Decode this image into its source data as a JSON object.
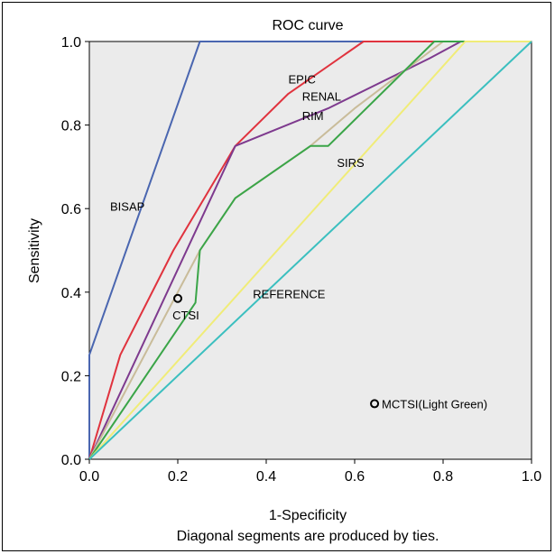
{
  "chart_data": {
    "type": "line",
    "title": "ROC curve",
    "xlabel": "1-Specificity",
    "ylabel": "Sensitivity",
    "footnote": "Diagonal segments are produced by ties.",
    "xlim": [
      0,
      1
    ],
    "ylim": [
      0,
      1
    ],
    "x_ticks": [
      "0.0",
      "0.2",
      "0.4",
      "0.6",
      "0.8",
      "1.0"
    ],
    "y_ticks": [
      "0.0",
      "0.2",
      "0.4",
      "0.6",
      "0.8",
      "1.0"
    ],
    "grid": false,
    "plot_background": "#ebebeb",
    "series": [
      {
        "name": "BISAP",
        "color": "#4a66b0",
        "points": [
          [
            0,
            0
          ],
          [
            0,
            0.25
          ],
          [
            0.25,
            1
          ],
          [
            1,
            1
          ]
        ]
      },
      {
        "name": "EPIC",
        "color": "#e0333e",
        "points": [
          [
            0,
            0
          ],
          [
            0.07,
            0.25
          ],
          [
            0.19,
            0.5
          ],
          [
            0.33,
            0.75
          ],
          [
            0.45,
            0.875
          ],
          [
            0.62,
            1
          ],
          [
            1,
            1
          ]
        ]
      },
      {
        "name": "RENAL",
        "color": "#7e3a8e",
        "points": [
          [
            0,
            0
          ],
          [
            0.33,
            0.75
          ],
          [
            0.54,
            0.84
          ],
          [
            0.77,
            0.96
          ],
          [
            0.84,
            1
          ],
          [
            1,
            1
          ]
        ]
      },
      {
        "name": "RIM",
        "color": "#c9bc9a",
        "points": [
          [
            0,
            0
          ],
          [
            0.25,
            0.5
          ],
          [
            0.33,
            0.625
          ],
          [
            0.5,
            0.75
          ],
          [
            0.6,
            0.84
          ],
          [
            0.8,
            1
          ],
          [
            1,
            1
          ]
        ]
      },
      {
        "name": "MCTSI(Light Green)",
        "color": "#3aa548",
        "points": [
          [
            0,
            0
          ],
          [
            0.24,
            0.375
          ],
          [
            0.25,
            0.5
          ],
          [
            0.33,
            0.625
          ],
          [
            0.5,
            0.75
          ],
          [
            0.54,
            0.75
          ],
          [
            0.78,
            1
          ],
          [
            1,
            1
          ]
        ]
      },
      {
        "name": "SIRS",
        "color": "#f0ec78",
        "points": [
          [
            0,
            0
          ],
          [
            0.85,
            1
          ],
          [
            1,
            1
          ]
        ]
      },
      {
        "name": "REFERENCE",
        "color": "#3bbfbf",
        "points": [
          [
            0,
            0
          ],
          [
            1,
            1
          ]
        ]
      },
      {
        "name": "CTSI",
        "color": "#000000",
        "marker": true,
        "points": [
          [
            0.2,
            0.385
          ]
        ]
      }
    ],
    "annotations": [
      {
        "text": "BISAP",
        "x": 0.047,
        "y": 0.595
      },
      {
        "text": "EPIC",
        "x": 0.45,
        "y": 0.9
      },
      {
        "text": "RENAL",
        "x": 0.481,
        "y": 0.858
      },
      {
        "text": "RIM",
        "x": 0.481,
        "y": 0.812
      },
      {
        "text": "SIRS",
        "x": 0.56,
        "y": 0.7
      },
      {
        "text": "REFERENCE",
        "x": 0.37,
        "y": 0.385
      },
      {
        "text": "CTSI",
        "x": 0.188,
        "y": 0.335
      }
    ],
    "legend_marker": {
      "text": "MCTSI(Light Green)",
      "x": 0.645,
      "y": 0.133
    }
  }
}
